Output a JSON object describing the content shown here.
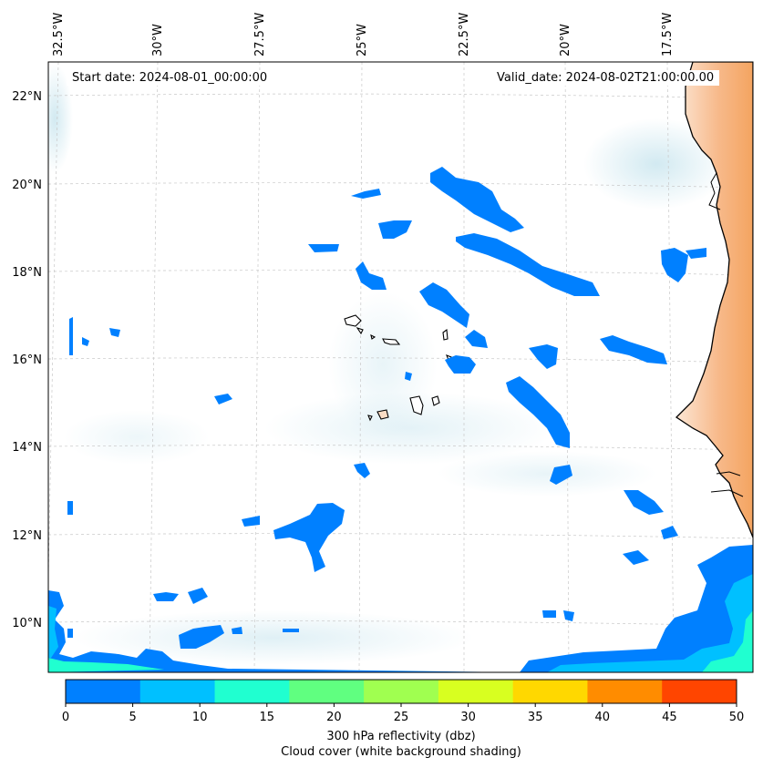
{
  "map": {
    "start_label": "Start date: 2024-08-01_00:00:00",
    "valid_label": "Valid_date: 2024-08-02T21:00:00.00",
    "lon_ticks": [
      "32.5°W",
      "30°W",
      "27.5°W",
      "25°W",
      "22.5°W",
      "20°W",
      "17.5°W"
    ],
    "lat_ticks": [
      "22°N",
      "20°N",
      "18°N",
      "16°N",
      "14°N",
      "12°N",
      "10°N"
    ],
    "extent": {
      "lon_min": -32.6,
      "lon_max": -15.4,
      "lat_min": 8.9,
      "lat_max": 22.8
    },
    "land_color": "#f4a460",
    "cloud_color": "#add8e6"
  },
  "colorbar": {
    "ticks": [
      "0",
      "5",
      "10",
      "15",
      "20",
      "25",
      "30",
      "35",
      "40",
      "45",
      "50"
    ],
    "colors": [
      "#0080ff",
      "#00c0ff",
      "#20ffd0",
      "#60ff80",
      "#a0ff50",
      "#d8ff20",
      "#ffd800",
      "#ff8c00",
      "#ff4500"
    ],
    "label_line1": "300 hPa reflectivity (dbz)",
    "label_line2": "Cloud cover (white background shading)"
  }
}
